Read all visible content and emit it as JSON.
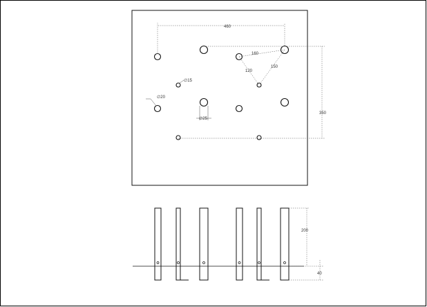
{
  "drawing": {
    "dimensions": {
      "width_460": "460",
      "height_350": "350",
      "diag_160": "160",
      "diag_120": "120",
      "diag_150": "150",
      "dia_15": "∅15",
      "dia_20": "∅20",
      "dia_25": "∅25",
      "elev_200": "200",
      "elev_40": "40"
    },
    "colors": {
      "line": "#222222",
      "dim": "#555555",
      "frame": "#000000"
    }
  }
}
